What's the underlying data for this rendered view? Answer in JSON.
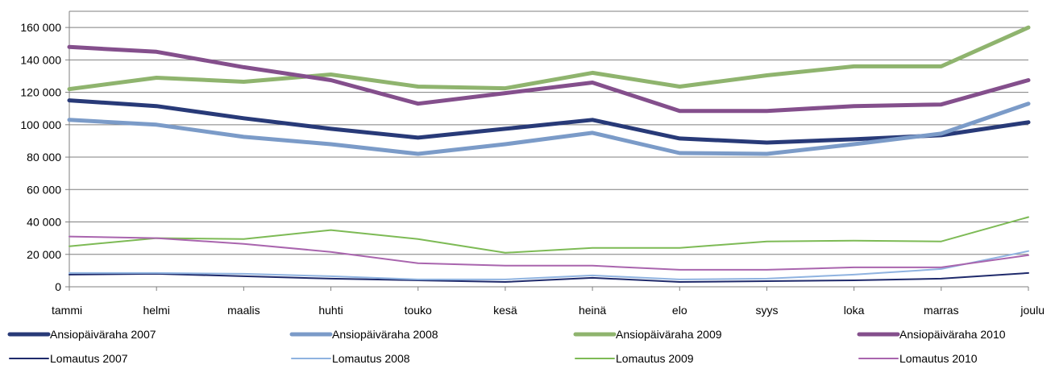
{
  "chart_data": {
    "type": "line",
    "title": "",
    "xlabel": "",
    "ylabel": "",
    "ylim": [
      0,
      170000
    ],
    "yticks": [
      0,
      20000,
      40000,
      60000,
      80000,
      100000,
      120000,
      140000,
      160000
    ],
    "ytick_labels": [
      "0",
      "20 000",
      "40 000",
      "60 000",
      "80 000",
      "100 000",
      "120 000",
      "140 000",
      "160 000"
    ],
    "grid": "horizontal",
    "legend_position": "bottom",
    "categories": [
      "tammi",
      "helmi",
      "maalis",
      "huhti",
      "touko",
      "kesä",
      "heinä",
      "elo",
      "syys",
      "loka",
      "marras",
      "joulu"
    ],
    "series": [
      {
        "name": "Ansiopäiväraha 2007",
        "color": "#283a78",
        "weight": "thick",
        "values": [
          115000,
          111500,
          104000,
          97500,
          92000,
          97500,
          103000,
          91500,
          89000,
          91000,
          93500,
          101500
        ]
      },
      {
        "name": "Ansiopäiväraha 2008",
        "color": "#7b9bc8",
        "weight": "thick",
        "values": [
          103000,
          100000,
          92500,
          88000,
          82000,
          88000,
          95000,
          82500,
          82000,
          88000,
          94500,
          113000
        ]
      },
      {
        "name": "Ansiopäiväraha 2009",
        "color": "#8fb46e",
        "weight": "thick",
        "values": [
          122000,
          129000,
          126500,
          131000,
          123500,
          122500,
          132000,
          123500,
          130500,
          136000,
          136000,
          160000
        ]
      },
      {
        "name": "Ansiopäiväraha 2010",
        "color": "#844f8c",
        "weight": "thick",
        "values": [
          148000,
          145000,
          135500,
          127500,
          113000,
          119500,
          126000,
          108500,
          108500,
          111500,
          112500,
          127500
        ]
      },
      {
        "name": "Lomautus 2007",
        "color": "#1f2a6b",
        "weight": "thin",
        "values": [
          7500,
          8000,
          6500,
          5000,
          4000,
          3000,
          5500,
          3000,
          3500,
          4000,
          5000,
          8500
        ]
      },
      {
        "name": "Lomautus 2008",
        "color": "#8fb3e0",
        "weight": "thin",
        "values": [
          8500,
          8500,
          8000,
          6500,
          4500,
          4500,
          7000,
          4500,
          5000,
          7500,
          11000,
          22000
        ]
      },
      {
        "name": "Lomautus 2009",
        "color": "#7dba55",
        "weight": "thin",
        "values": [
          25000,
          30000,
          29500,
          35000,
          29500,
          21000,
          24000,
          24000,
          28000,
          28500,
          28000,
          43000
        ]
      },
      {
        "name": "Lomautus 2010",
        "color": "#a965ae",
        "weight": "thin",
        "values": [
          31000,
          30000,
          26500,
          21500,
          14500,
          13000,
          13000,
          10500,
          10500,
          12000,
          12000,
          19500
        ]
      }
    ]
  }
}
